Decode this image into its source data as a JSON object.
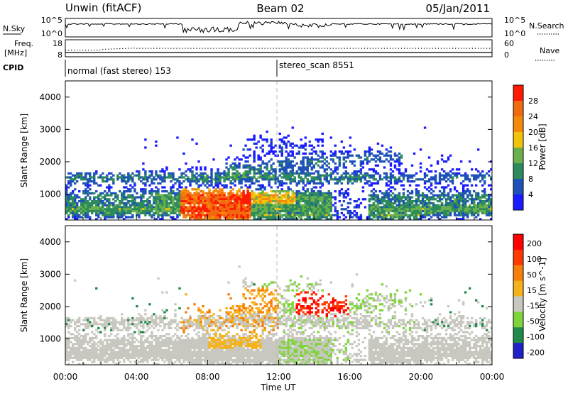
{
  "header": {
    "station": "Unwin (fitACF)",
    "beam": "Beam 02",
    "date": "05/Jan/2011"
  },
  "nsky_panel": {
    "label": "N.Sky",
    "ticks_left": [
      "10^5",
      "10^0"
    ],
    "ticks_right": [
      "10^5",
      "10^0"
    ],
    "right_label": "N.Search"
  },
  "freq_panel": {
    "label_line1": "Freq.",
    "label_line2": "[MHz]",
    "ticks_left": [
      "18",
      "8"
    ],
    "ticks_right": [
      "60",
      "0"
    ],
    "right_label": "Nave"
  },
  "cpid_panel": {
    "label": "CPID",
    "mode1": "normal (fast stereo) 153",
    "mode2": "stereo_scan 8551"
  },
  "x_axis": {
    "label": "Time UT",
    "ticks": [
      "00:00",
      "04:00",
      "08:00",
      "12:00",
      "16:00",
      "20:00",
      "00:00"
    ]
  },
  "colors": {
    "power_scale": [
      "#1b1bff",
      "#1e52b8",
      "#2d8a5c",
      "#6ab04c",
      "#f2c20d",
      "#f58a0a",
      "#f06a10",
      "#ff1a00"
    ],
    "velocity_scale": [
      "#2020c8",
      "#1f8a4a",
      "#7fd43a",
      "#c8c8c0",
      "#f5b21b",
      "#f57f0a",
      "#ff3a00",
      "#ff0000"
    ],
    "ground_scatter": "#c8c8c0"
  },
  "chart_data": [
    {
      "type": "heatmap",
      "title": "",
      "xlabel": "",
      "ylabel": "Slant Range [km]",
      "xlim_hours": [
        0,
        24
      ],
      "ylim_km": [
        200,
        4500
      ],
      "yticks": [
        "1000",
        "2000",
        "3000",
        "4000"
      ],
      "colorbar": {
        "label": "Power [dB]",
        "ticks": [
          "4",
          "8",
          "12",
          "16",
          "20",
          "24",
          "28"
        ]
      }
    },
    {
      "type": "heatmap",
      "title": "",
      "xlabel": "Time UT",
      "ylabel": "Slant Range [km]",
      "xlim_hours": [
        0,
        24
      ],
      "ylim_km": [
        200,
        4500
      ],
      "yticks": [
        "1000",
        "2000",
        "3000",
        "4000"
      ],
      "colorbar": {
        "label": "Velocity [m s^-1]",
        "ticks": [
          "200",
          "100",
          "50",
          "15",
          "-15",
          "-50",
          "-100",
          "-200"
        ]
      }
    }
  ]
}
